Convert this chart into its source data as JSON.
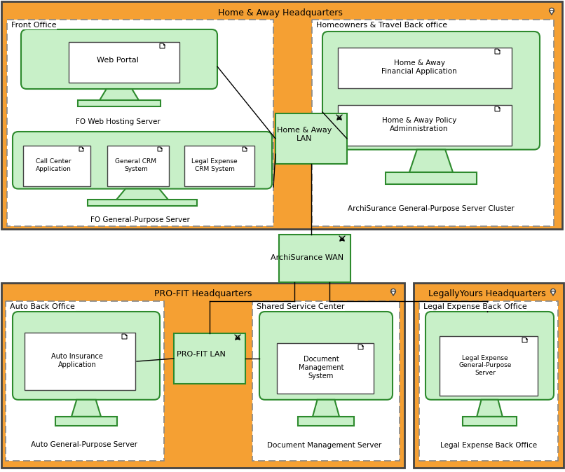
{
  "orange": "#F5A033",
  "white": "#FFFFFF",
  "light_green": "#C8F0C8",
  "green_border": "#2D8A2D",
  "dark": "#444444",
  "dashed": "#888888",
  "fig_w": 8.06,
  "fig_h": 6.74,
  "dpi": 100,
  "labels": {
    "ha_hq": "Home & Away Headquarters",
    "front_office": "Front Office",
    "fo_web_server": "FO Web Hosting Server",
    "web_portal": "Web Portal",
    "fo_gp_server": "FO General-Purpose Server",
    "call_center": "Call Center\nApplication",
    "general_crm": "General CRM\nSystem",
    "legal_crm": "Legal Expense\nCRM System",
    "homeowners": "Homeowners & Travel Back office",
    "archisurance_cluster": "ArchiSurance General-Purpose Server Cluster",
    "ha_financial": "Home & Away\nFinancial Application",
    "ha_policy": "Home & Away Policy\nAdminnistration",
    "ha_lan": "Home & Away\nLAN",
    "archisurance_wan": "ArchiSurance WAN",
    "profit_hq": "PRO-FIT Headquarters",
    "auto_back_office": "Auto Back Office",
    "auto_gp_server": "Auto General-Purpose Server",
    "auto_insurance": "Auto Insurance\nApplication",
    "profit_lan": "PRO-FIT LAN",
    "shared_service": "Shared Service Center",
    "doc_mgmt_server": "Document Management Server",
    "doc_mgmt": "Document\nManagement\nSystem",
    "legally_hq": "LegallyYours Headquarters",
    "legal_back_office": "Legal Expense Back Office",
    "legal_back_server": "Legal Expense Back Office",
    "legal_gp": "Legal Expense\nGeneral-Purpose\nServer"
  }
}
